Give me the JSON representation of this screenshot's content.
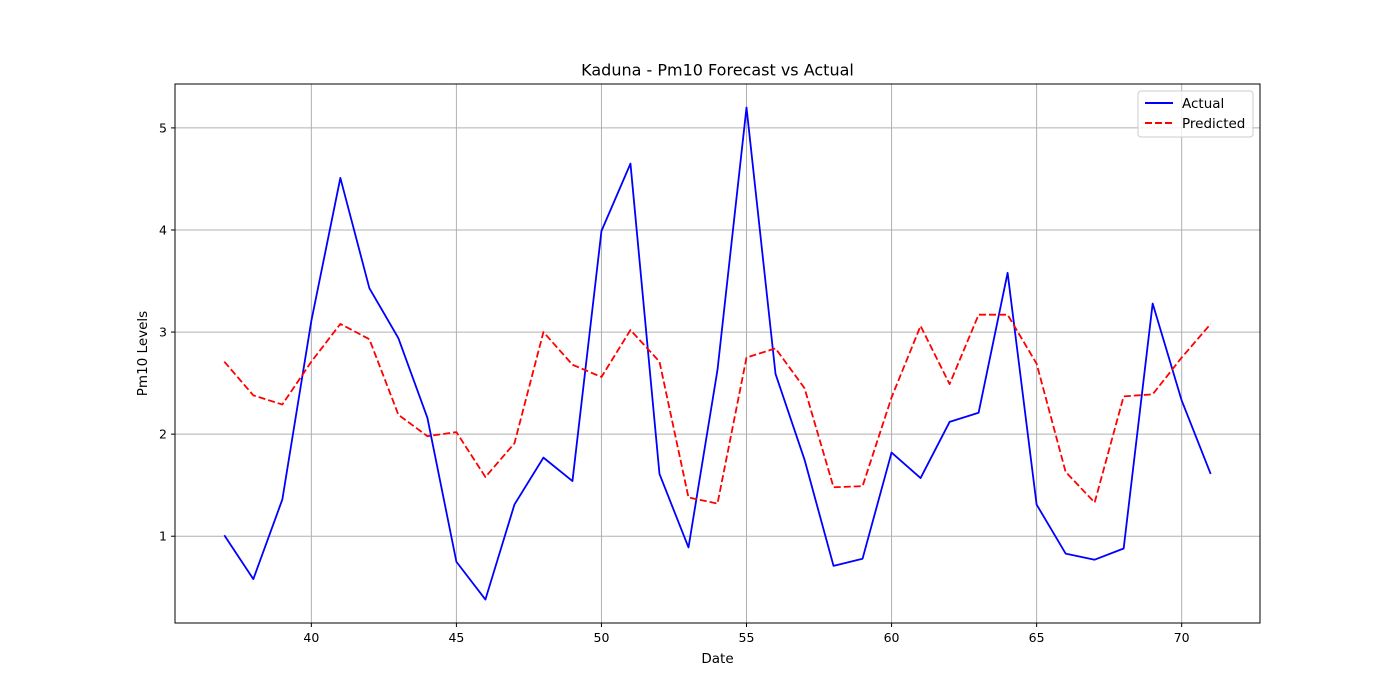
{
  "chart_data": {
    "type": "line",
    "title": "Kaduna - Pm10 Forecast vs Actual",
    "xlabel": "Date",
    "ylabel": "Pm10 Levels",
    "xlim": [
      35.3,
      72.7
    ],
    "ylim": [
      0.15,
      5.43
    ],
    "xticks": [
      40,
      45,
      50,
      55,
      60,
      65,
      70
    ],
    "yticks": [
      1,
      2,
      3,
      4,
      5
    ],
    "grid": true,
    "legend_position": "top-right",
    "x": [
      37,
      38,
      39,
      40,
      41,
      42,
      43,
      44,
      45,
      46,
      47,
      48,
      49,
      50,
      51,
      52,
      53,
      54,
      55,
      56,
      57,
      58,
      59,
      60,
      61,
      62,
      63,
      64,
      65,
      66,
      67,
      68,
      69,
      70,
      71
    ],
    "series": [
      {
        "name": "Actual",
        "color": "#0000ff",
        "style": "solid",
        "values": [
          1.01,
          0.58,
          1.36,
          3.11,
          4.51,
          3.43,
          2.94,
          2.16,
          0.75,
          0.38,
          1.31,
          1.77,
          1.54,
          3.99,
          4.65,
          1.61,
          0.89,
          2.63,
          5.2,
          2.59,
          1.75,
          0.71,
          0.78,
          1.82,
          1.57,
          2.12,
          2.21,
          3.58,
          1.31,
          0.83,
          0.77,
          0.88,
          3.28,
          2.33,
          1.61
        ]
      },
      {
        "name": "Predicted",
        "color": "#ff0000",
        "style": "dashed",
        "values": [
          2.71,
          2.38,
          2.29,
          2.71,
          3.08,
          2.93,
          2.19,
          1.98,
          2.02,
          1.58,
          1.91,
          3.0,
          2.68,
          2.56,
          3.02,
          2.71,
          1.38,
          1.32,
          2.75,
          2.84,
          2.45,
          1.48,
          1.49,
          2.36,
          3.06,
          2.49,
          3.17,
          3.17,
          2.69,
          1.63,
          1.33,
          2.37,
          2.39,
          2.75,
          3.08
        ]
      }
    ]
  }
}
